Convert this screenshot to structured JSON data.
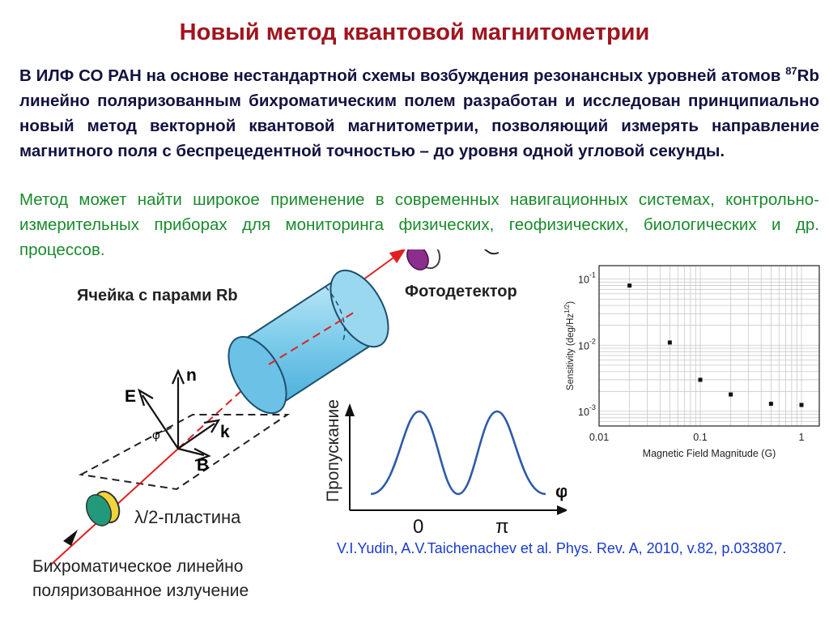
{
  "title": "Новый метод квантовой магнитометрии",
  "intro": {
    "p1_part1": "В ИЛФ СО РАН на основе нестандартной схемы возбуждения резонансных уровней атомов ",
    "isotope_sup": "87",
    "p1_part2": "Rb линейно поляризованным бихроматическим полем разработан и исследован принципиально новый метод векторной квантовой магнитометрии, позволяющий измерять направление магнитного поля с беспрецедентной точностью – до уровня одной угловой секунды.",
    "p2": "Метод может найти широкое применение в современных навигационных системах, контрольно-измерительных приборах для мониторинга физических, геофизических, биологических и др. процессов."
  },
  "diagram": {
    "cell_label": "Ячейка с парами Rb",
    "detector_label": "Фотодетектор",
    "plate_label": "λ/2-пластина",
    "radiation_line1": "Бихроматическое линейно",
    "radiation_line2": "поляризованное излучение",
    "vec_E": "E",
    "vec_n": "n",
    "vec_k": "k",
    "vec_B": "B",
    "angle_phi": "φ",
    "inset": {
      "ylabel": "Пропускание",
      "xlabel": "φ",
      "tick0": "0",
      "tickpi": "π"
    }
  },
  "chart_data": {
    "type": "scatter",
    "xlabel": "Magnetic Field Magnitude (G)",
    "ylabel": "Sensitivity (deg/Hz^1/2)",
    "xscale": "log",
    "yscale": "log",
    "xlim": [
      0.01,
      1.5
    ],
    "ylim": [
      0.0006,
      0.16
    ],
    "grid": true,
    "x_ticks": [
      "0.01",
      "0.1",
      "1"
    ],
    "y_ticks": [
      {
        "base": "10",
        "exp": "-1"
      },
      {
        "base": "10",
        "exp": "-2"
      },
      {
        "base": "10",
        "exp": "-3"
      }
    ],
    "points": [
      {
        "x": 0.02,
        "y": 0.08
      },
      {
        "x": 0.05,
        "y": 0.011
      },
      {
        "x": 0.1,
        "y": 0.003
      },
      {
        "x": 0.2,
        "y": 0.0018
      },
      {
        "x": 0.5,
        "y": 0.0013
      },
      {
        "x": 1.0,
        "y": 0.00125
      }
    ]
  },
  "reference": "V.I.Yudin, A.V.Taichenachev et al. Phys. Rev. A, 2010, v.82, p.033807."
}
